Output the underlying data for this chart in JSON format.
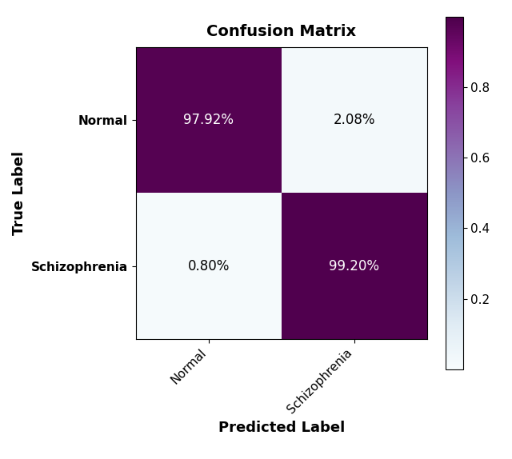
{
  "title": "Confusion Matrix",
  "xlabel": "Predicted Label",
  "ylabel": "True Label",
  "classes": [
    "Normal",
    "Schizophrenia"
  ],
  "matrix_values": [
    [
      0.9792,
      0.0208
    ],
    [
      0.008,
      0.992
    ]
  ],
  "cell_labels": [
    [
      "97.92%",
      "2.08%"
    ],
    [
      "0.80%",
      "99.20%"
    ]
  ],
  "text_colors": [
    [
      "white",
      "black"
    ],
    [
      "black",
      "white"
    ]
  ],
  "cmap": "BuPu",
  "vmin": 0,
  "vmax": 1,
  "colorbar_ticks": [
    0.2,
    0.4,
    0.6,
    0.8
  ],
  "title_fontsize": 14,
  "label_fontsize": 13,
  "tick_fontsize": 11,
  "cell_fontsize": 12,
  "figsize": [
    6.4,
    5.74
  ],
  "dpi": 100
}
